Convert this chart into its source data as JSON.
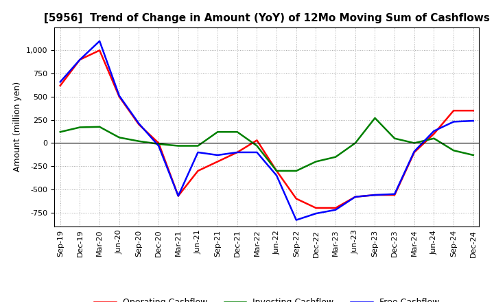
{
  "title": "[5956]  Trend of Change in Amount (YoY) of 12Mo Moving Sum of Cashflows",
  "ylabel": "Amount (million yen)",
  "x_labels": [
    "Sep-19",
    "Dec-19",
    "Mar-20",
    "Jun-20",
    "Sep-20",
    "Dec-20",
    "Mar-21",
    "Jun-21",
    "Sep-21",
    "Dec-21",
    "Mar-22",
    "Jun-22",
    "Sep-22",
    "Dec-22",
    "Mar-23",
    "Jun-23",
    "Sep-23",
    "Dec-23",
    "Mar-24",
    "Jun-24",
    "Sep-24",
    "Dec-24"
  ],
  "operating": [
    620,
    900,
    1000,
    500,
    200,
    0,
    -570,
    -300,
    -200,
    -100,
    30,
    -300,
    -600,
    -700,
    -700,
    -580,
    -560,
    -560,
    -100,
    100,
    350,
    350
  ],
  "investing": [
    120,
    170,
    175,
    60,
    20,
    -10,
    -30,
    -30,
    120,
    120,
    -30,
    -300,
    -300,
    -200,
    -150,
    0,
    270,
    50,
    0,
    50,
    -80,
    -130
  ],
  "free": [
    660,
    900,
    1100,
    510,
    210,
    -30,
    -570,
    -100,
    -130,
    -100,
    -100,
    -350,
    -830,
    -760,
    -720,
    -580,
    -560,
    -550,
    -90,
    130,
    230,
    240
  ],
  "ylim": [
    -900,
    1250
  ],
  "yticks": [
    -750,
    -500,
    -250,
    0,
    250,
    500,
    750,
    1000
  ],
  "operating_color": "#ff0000",
  "investing_color": "#008000",
  "free_color": "#0000ff",
  "background_color": "#ffffff",
  "grid_color": "#aaaaaa",
  "title_fontsize": 11,
  "axis_fontsize": 8,
  "ylabel_fontsize": 9,
  "legend_fontsize": 9,
  "linewidth": 1.8
}
